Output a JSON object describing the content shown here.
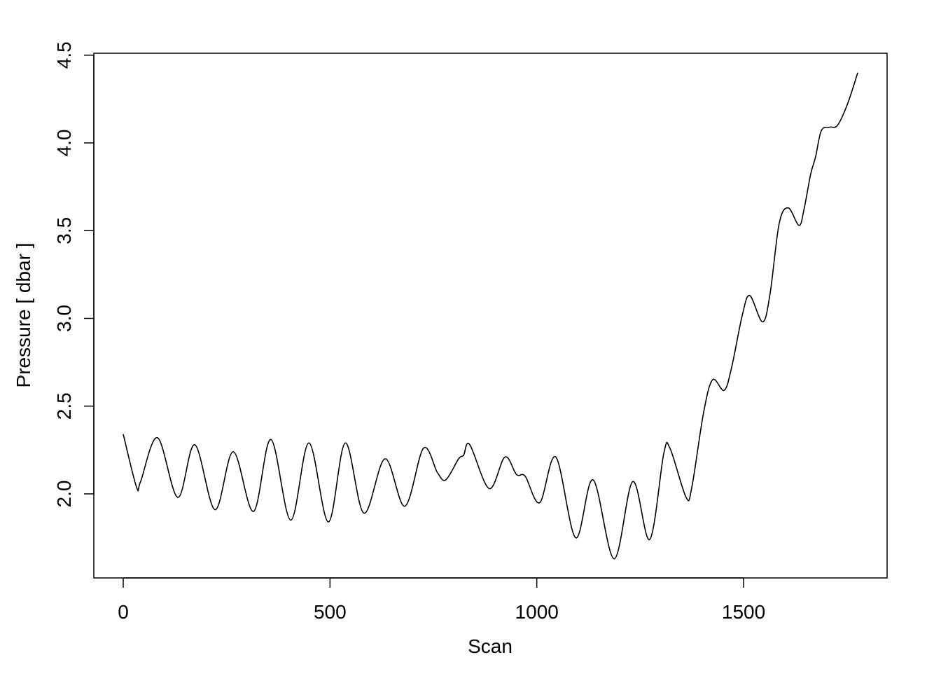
{
  "chart_data": {
    "type": "line",
    "title": "",
    "xlabel": "Scan",
    "ylabel": "Pressure [ dbar ]",
    "xlim": [
      -70,
      1850
    ],
    "ylim": [
      1.52,
      4.5
    ],
    "xticks": [
      0,
      500,
      1000,
      1500
    ],
    "xtick_labels": [
      "0",
      "500",
      "1000",
      "1500"
    ],
    "yticks": [
      2.0,
      2.5,
      3.0,
      3.5,
      4.0,
      4.5
    ],
    "ytick_labels": [
      "2.0",
      "2.5",
      "3.0",
      "3.5",
      "4.0",
      "4.5"
    ],
    "grid": false,
    "line_color": "#000000",
    "series": [
      {
        "x": [
          0,
          32,
          42,
          83,
          132,
          173,
          222,
          266,
          315,
          357,
          405,
          449,
          496,
          537,
          582,
          633,
          681,
          726,
          760,
          780,
          811,
          823,
          838,
          885,
          923,
          951,
          972,
          1007,
          1046,
          1094,
          1136,
          1187,
          1232,
          1273,
          1307,
          1322,
          1361,
          1375,
          1403,
          1425,
          1453,
          1471,
          1497,
          1515,
          1546,
          1564,
          1586,
          1608,
          1634,
          1646,
          1662,
          1674,
          1688,
          1708,
          1727,
          1751,
          1776
        ],
        "y": [
          2.34,
          2.04,
          2.07,
          2.32,
          1.98,
          2.28,
          1.91,
          2.24,
          1.9,
          2.31,
          1.85,
          2.29,
          1.84,
          2.29,
          1.89,
          2.2,
          1.93,
          2.26,
          2.12,
          2.08,
          2.2,
          2.22,
          2.28,
          2.03,
          2.21,
          2.11,
          2.1,
          1.95,
          2.21,
          1.75,
          2.08,
          1.63,
          2.07,
          1.74,
          2.23,
          2.26,
          1.98,
          2.04,
          2.46,
          2.65,
          2.59,
          2.72,
          3.02,
          3.13,
          2.98,
          3.14,
          3.54,
          3.63,
          3.53,
          3.62,
          3.82,
          3.92,
          4.07,
          4.09,
          4.1,
          4.22,
          4.4
        ]
      }
    ]
  }
}
